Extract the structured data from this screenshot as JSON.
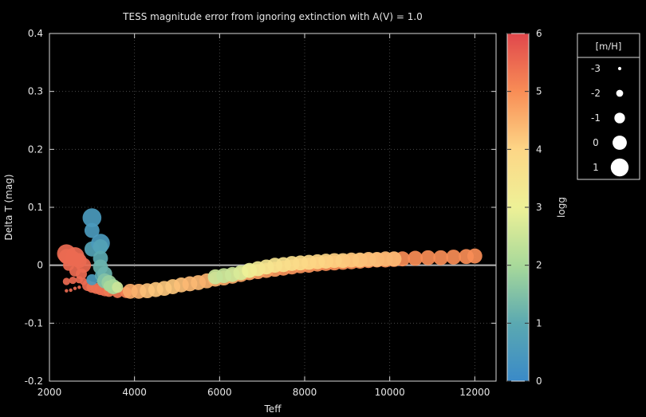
{
  "chart_data": {
    "type": "scatter",
    "title": "TESS magnitude error from ignoring extinction with A(V) = 1.0",
    "xlabel": "Teff",
    "ylabel": "Delta T (mag)",
    "xlim": [
      2000,
      12500
    ],
    "ylim": [
      -0.2,
      0.4
    ],
    "x_ticks": [
      "2000",
      "4000",
      "6000",
      "8000",
      "10000",
      "12000"
    ],
    "y_ticks": [
      "-0.2",
      "-0.1",
      "0",
      "0.1",
      "0.2",
      "0.3",
      "0.4"
    ],
    "colorbar": {
      "label": "logg",
      "range": [
        0,
        6
      ],
      "ticks": [
        "0",
        "1",
        "2",
        "3",
        "4",
        "5",
        "6"
      ]
    },
    "size_legend": {
      "title": "[m/H]",
      "entries": [
        {
          "label": "-3",
          "mh": -3
        },
        {
          "label": "-2",
          "mh": -2
        },
        {
          "label": "-1",
          "mh": -1
        },
        {
          "label": "0",
          "mh": 0
        },
        {
          "label": "1",
          "mh": 1
        }
      ]
    },
    "reference_line": {
      "y": 0,
      "color": "#b8b8b8"
    },
    "grid": "dotted",
    "series": [
      {
        "points": [
          {
            "x": 2400,
            "y": -0.044,
            "logg": 5.5,
            "mh": -3
          },
          {
            "x": 2500,
            "y": -0.043,
            "logg": 5.5,
            "mh": -3
          },
          {
            "x": 2600,
            "y": -0.04,
            "logg": 5.5,
            "mh": -3
          },
          {
            "x": 2700,
            "y": -0.038,
            "logg": 5.5,
            "mh": -3
          },
          {
            "x": 2400,
            "y": -0.028,
            "logg": 5.5,
            "mh": -2
          },
          {
            "x": 2550,
            "y": -0.026,
            "logg": 5.5,
            "mh": -2
          },
          {
            "x": 2700,
            "y": -0.025,
            "logg": 5.5,
            "mh": -2
          },
          {
            "x": 2800,
            "y": -0.028,
            "logg": 5.5,
            "mh": -2
          },
          {
            "x": 2450,
            "y": 0.0,
            "logg": 5.5,
            "mh": -1
          },
          {
            "x": 2600,
            "y": -0.01,
            "logg": 5.5,
            "mh": -1
          },
          {
            "x": 2750,
            "y": -0.015,
            "logg": 5.5,
            "mh": -1
          },
          {
            "x": 2400,
            "y": 0.015,
            "logg": 5.5,
            "mh": 0
          },
          {
            "x": 2550,
            "y": 0.012,
            "logg": 5.5,
            "mh": 0
          },
          {
            "x": 2700,
            "y": 0.008,
            "logg": 5.5,
            "mh": 0
          },
          {
            "x": 2800,
            "y": 0.0,
            "logg": 5.5,
            "mh": 0
          },
          {
            "x": 2400,
            "y": 0.02,
            "logg": 5.5,
            "mh": 1
          },
          {
            "x": 2600,
            "y": 0.015,
            "logg": 5.5,
            "mh": 1
          },
          {
            "x": 2900,
            "y": -0.035,
            "logg": 5.5,
            "mh": -1
          },
          {
            "x": 3000,
            "y": -0.038,
            "logg": 5.4,
            "mh": -1
          },
          {
            "x": 3100,
            "y": -0.04,
            "logg": 5.4,
            "mh": -1
          },
          {
            "x": 3200,
            "y": -0.042,
            "logg": 5.4,
            "mh": -1
          },
          {
            "x": 3300,
            "y": -0.044,
            "logg": 5.4,
            "mh": -1
          },
          {
            "x": 3400,
            "y": -0.045,
            "logg": 5.3,
            "mh": -1
          },
          {
            "x": 3600,
            "y": -0.047,
            "logg": 5.3,
            "mh": -1
          },
          {
            "x": 3800,
            "y": -0.047,
            "logg": 5.2,
            "mh": -1
          },
          {
            "x": 3000,
            "y": 0.082,
            "logg": 0.5,
            "mh": 1
          },
          {
            "x": 3000,
            "y": 0.06,
            "logg": 0.5,
            "mh": 0
          },
          {
            "x": 3000,
            "y": 0.028,
            "logg": 0.8,
            "mh": 0
          },
          {
            "x": 3000,
            "y": -0.025,
            "logg": 0.5,
            "mh": -1
          },
          {
            "x": 3200,
            "y": 0.038,
            "logg": 0.5,
            "mh": 1
          },
          {
            "x": 3200,
            "y": 0.032,
            "logg": 0.8,
            "mh": 0
          },
          {
            "x": 3200,
            "y": 0.012,
            "logg": 1.0,
            "mh": 0
          },
          {
            "x": 3200,
            "y": -0.003,
            "logg": 1.2,
            "mh": 0
          },
          {
            "x": 3200,
            "y": -0.018,
            "logg": 1.0,
            "mh": -1
          },
          {
            "x": 3200,
            "y": -0.028,
            "logg": 1.5,
            "mh": -2
          },
          {
            "x": 3300,
            "y": -0.015,
            "logg": 1.2,
            "mh": 0
          },
          {
            "x": 3300,
            "y": -0.027,
            "logg": 1.5,
            "mh": 0
          },
          {
            "x": 3400,
            "y": -0.03,
            "logg": 1.8,
            "mh": 0
          },
          {
            "x": 3400,
            "y": -0.036,
            "logg": 2.0,
            "mh": -1
          },
          {
            "x": 3500,
            "y": -0.037,
            "logg": 2.0,
            "mh": 0
          },
          {
            "x": 3600,
            "y": -0.038,
            "logg": 2.5,
            "mh": -1
          },
          {
            "x": 3900,
            "y": -0.045,
            "logg": 4.6,
            "mh": 0
          },
          {
            "x": 4100,
            "y": -0.045,
            "logg": 4.5,
            "mh": 0
          },
          {
            "x": 4300,
            "y": -0.044,
            "logg": 4.3,
            "mh": 0
          },
          {
            "x": 4500,
            "y": -0.042,
            "logg": 4.2,
            "mh": 0
          },
          {
            "x": 4700,
            "y": -0.04,
            "logg": 4.2,
            "mh": 0
          },
          {
            "x": 4900,
            "y": -0.037,
            "logg": 4.2,
            "mh": 0
          },
          {
            "x": 5100,
            "y": -0.034,
            "logg": 4.3,
            "mh": 0
          },
          {
            "x": 5300,
            "y": -0.032,
            "logg": 4.4,
            "mh": 0
          },
          {
            "x": 5500,
            "y": -0.03,
            "logg": 4.4,
            "mh": 0
          },
          {
            "x": 5700,
            "y": -0.027,
            "logg": 4.5,
            "mh": 0
          },
          {
            "x": 5900,
            "y": -0.024,
            "logg": 4.5,
            "mh": 0
          },
          {
            "x": 6100,
            "y": -0.022,
            "logg": 4.6,
            "mh": 0
          },
          {
            "x": 6300,
            "y": -0.019,
            "logg": 4.6,
            "mh": 0
          },
          {
            "x": 6500,
            "y": -0.016,
            "logg": 4.7,
            "mh": 0
          },
          {
            "x": 6700,
            "y": -0.013,
            "logg": 4.7,
            "mh": 0
          },
          {
            "x": 6900,
            "y": -0.011,
            "logg": 4.8,
            "mh": 0
          },
          {
            "x": 7100,
            "y": -0.009,
            "logg": 4.8,
            "mh": 0
          },
          {
            "x": 7300,
            "y": -0.007,
            "logg": 4.8,
            "mh": 0
          },
          {
            "x": 7500,
            "y": -0.005,
            "logg": 4.9,
            "mh": 0
          },
          {
            "x": 7700,
            "y": -0.003,
            "logg": 4.9,
            "mh": 0
          },
          {
            "x": 7900,
            "y": -0.001,
            "logg": 4.9,
            "mh": 0
          },
          {
            "x": 8100,
            "y": 0.0,
            "logg": 4.9,
            "mh": 0
          },
          {
            "x": 8300,
            "y": 0.002,
            "logg": 4.9,
            "mh": 0
          },
          {
            "x": 8500,
            "y": 0.003,
            "logg": 5.0,
            "mh": 0
          },
          {
            "x": 8700,
            "y": 0.004,
            "logg": 5.0,
            "mh": 0
          },
          {
            "x": 8900,
            "y": 0.005,
            "logg": 5.0,
            "mh": 0
          },
          {
            "x": 9100,
            "y": 0.006,
            "logg": 5.0,
            "mh": 0
          },
          {
            "x": 9300,
            "y": 0.007,
            "logg": 5.0,
            "mh": 0
          },
          {
            "x": 9500,
            "y": 0.008,
            "logg": 5.0,
            "mh": 0
          },
          {
            "x": 9700,
            "y": 0.009,
            "logg": 5.0,
            "mh": 0
          },
          {
            "x": 9900,
            "y": 0.009,
            "logg": 5.0,
            "mh": 0
          },
          {
            "x": 10100,
            "y": 0.01,
            "logg": 5.0,
            "mh": 0
          },
          {
            "x": 10300,
            "y": 0.011,
            "logg": 5.0,
            "mh": 0
          },
          {
            "x": 10600,
            "y": 0.012,
            "logg": 5.0,
            "mh": 0
          },
          {
            "x": 10900,
            "y": 0.013,
            "logg": 5.0,
            "mh": 0
          },
          {
            "x": 11200,
            "y": 0.013,
            "logg": 5.0,
            "mh": 0
          },
          {
            "x": 11500,
            "y": 0.014,
            "logg": 5.0,
            "mh": 0
          },
          {
            "x": 11800,
            "y": 0.015,
            "logg": 5.0,
            "mh": 0
          },
          {
            "x": 12000,
            "y": 0.016,
            "logg": 5.0,
            "mh": 0
          },
          {
            "x": 5900,
            "y": -0.02,
            "logg": 2.5,
            "mh": 0
          },
          {
            "x": 6100,
            "y": -0.018,
            "logg": 2.4,
            "mh": 0
          },
          {
            "x": 6300,
            "y": -0.016,
            "logg": 2.5,
            "mh": 0
          },
          {
            "x": 6500,
            "y": -0.013,
            "logg": 2.7,
            "mh": 0
          },
          {
            "x": 6700,
            "y": -0.009,
            "logg": 3.0,
            "mh": 0
          },
          {
            "x": 6900,
            "y": -0.006,
            "logg": 3.2,
            "mh": 0
          },
          {
            "x": 7100,
            "y": -0.003,
            "logg": 3.4,
            "mh": 0
          },
          {
            "x": 7300,
            "y": 0.0,
            "logg": 3.5,
            "mh": 0
          },
          {
            "x": 7500,
            "y": 0.001,
            "logg": 3.6,
            "mh": 0
          },
          {
            "x": 7700,
            "y": 0.003,
            "logg": 3.7,
            "mh": 0
          },
          {
            "x": 7900,
            "y": 0.004,
            "logg": 3.8,
            "mh": 0
          },
          {
            "x": 8100,
            "y": 0.005,
            "logg": 3.9,
            "mh": 0
          },
          {
            "x": 8300,
            "y": 0.006,
            "logg": 4.0,
            "mh": 0
          },
          {
            "x": 8500,
            "y": 0.007,
            "logg": 4.0,
            "mh": 0
          },
          {
            "x": 8700,
            "y": 0.008,
            "logg": 4.1,
            "mh": 0
          },
          {
            "x": 8900,
            "y": 0.008,
            "logg": 4.1,
            "mh": 0
          },
          {
            "x": 9100,
            "y": 0.009,
            "logg": 4.2,
            "mh": 0
          },
          {
            "x": 9300,
            "y": 0.009,
            "logg": 4.2,
            "mh": 0
          },
          {
            "x": 9500,
            "y": 0.01,
            "logg": 4.3,
            "mh": 0
          },
          {
            "x": 9700,
            "y": 0.01,
            "logg": 4.3,
            "mh": 0
          },
          {
            "x": 9900,
            "y": 0.011,
            "logg": 4.4,
            "mh": 0
          },
          {
            "x": 10100,
            "y": 0.011,
            "logg": 4.4,
            "mh": 0
          }
        ]
      }
    ]
  }
}
